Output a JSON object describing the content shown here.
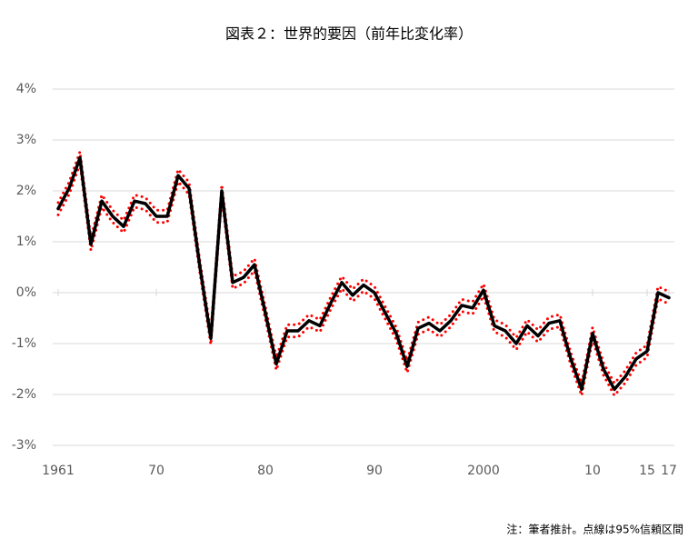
{
  "chart_data": {
    "type": "line",
    "title": "図表２：世界的要因（前年比変化率）",
    "note": "注：筆者推計。点線は95%信頼区間",
    "x": [
      1961,
      1962,
      1963,
      1964,
      1965,
      1966,
      1967,
      1968,
      1969,
      1970,
      1971,
      1972,
      1973,
      1974,
      1975,
      1976,
      1977,
      1978,
      1979,
      1980,
      1981,
      1982,
      1983,
      1984,
      1985,
      1986,
      1987,
      1988,
      1989,
      1990,
      1991,
      1992,
      1993,
      1994,
      1995,
      1996,
      1997,
      1998,
      1999,
      2000,
      2001,
      2002,
      2003,
      2004,
      2005,
      2006,
      2007,
      2008,
      2009,
      2010,
      2011,
      2012,
      2013,
      2014,
      2015,
      2016,
      2017
    ],
    "series": [
      {
        "color": "#ff0000",
        "style": "dotted",
        "values": [
          1.77,
          2.17,
          2.77,
          1.07,
          1.92,
          1.62,
          1.42,
          1.92,
          1.87,
          1.62,
          1.62,
          2.42,
          2.17,
          0.62,
          -0.78,
          2.12,
          0.32,
          0.42,
          0.67,
          -0.28,
          -1.28,
          -0.63,
          -0.63,
          -0.43,
          -0.53,
          -0.08,
          0.32,
          0.07,
          0.27,
          0.12,
          -0.28,
          -0.68,
          -1.33,
          -0.58,
          -0.48,
          -0.63,
          -0.43,
          -0.13,
          -0.18,
          0.17,
          -0.53,
          -0.63,
          -0.88,
          -0.53,
          -0.73,
          -0.48,
          -0.43,
          -1.18,
          -1.78,
          -0.68,
          -1.38,
          -1.78,
          -1.53,
          -1.18,
          -1.03,
          0.12,
          0.02
        ]
      },
      {
        "color": "#ff0000",
        "style": "dotted",
        "values": [
          1.53,
          1.93,
          2.53,
          0.83,
          1.68,
          1.38,
          1.18,
          1.68,
          1.63,
          1.38,
          1.38,
          2.18,
          1.93,
          0.38,
          -1.02,
          1.88,
          0.08,
          0.18,
          0.43,
          -0.52,
          -1.52,
          -0.87,
          -0.87,
          -0.67,
          -0.77,
          -0.32,
          0.08,
          -0.17,
          0.03,
          -0.12,
          -0.52,
          -0.92,
          -1.57,
          -0.82,
          -0.72,
          -0.87,
          -0.67,
          -0.37,
          -0.42,
          -0.07,
          -0.77,
          -0.87,
          -1.12,
          -0.77,
          -0.97,
          -0.72,
          -0.67,
          -1.42,
          -2.02,
          -0.92,
          -1.62,
          -2.02,
          -1.77,
          -1.42,
          -1.27,
          -0.12,
          -0.22
        ]
      },
      {
        "color": "#000000",
        "style": "solid",
        "values": [
          1.65,
          2.05,
          2.65,
          0.95,
          1.8,
          1.5,
          1.3,
          1.8,
          1.75,
          1.5,
          1.5,
          2.3,
          2.05,
          0.5,
          -0.9,
          2.0,
          0.2,
          0.3,
          0.55,
          -0.4,
          -1.4,
          -0.75,
          -0.75,
          -0.55,
          -0.65,
          -0.2,
          0.2,
          -0.05,
          0.15,
          0.0,
          -0.4,
          -0.8,
          -1.45,
          -0.7,
          -0.6,
          -0.75,
          -0.55,
          -0.25,
          -0.3,
          0.05,
          -0.65,
          -0.75,
          -1.0,
          -0.65,
          -0.85,
          -0.6,
          -0.55,
          -1.3,
          -1.9,
          -0.8,
          -1.5,
          -1.9,
          -1.65,
          -1.3,
          -1.15,
          0.0,
          -0.1
        ]
      }
    ],
    "xlim": [
      1961,
      2017
    ],
    "xticks": [
      1961,
      {
        "value": 1970,
        "label": "70"
      },
      {
        "value": 1980,
        "label": "80"
      },
      {
        "value": 1990,
        "label": "90"
      },
      2000,
      {
        "value": 2010,
        "label": "10"
      },
      {
        "value": 2015,
        "label": "15"
      },
      {
        "value": 2017,
        "label": "17"
      }
    ],
    "ylim": [
      -3,
      4
    ],
    "yticks": [
      {
        "value": -3,
        "label": "-3%"
      },
      {
        "value": -2,
        "label": "-2%"
      },
      {
        "value": -1,
        "label": "-1%"
      },
      {
        "value": 0,
        "label": "0%"
      },
      {
        "value": 1,
        "label": "1%"
      },
      {
        "value": 2,
        "label": "2%"
      },
      {
        "value": 3,
        "label": "3%"
      },
      {
        "value": 4,
        "label": "4%"
      }
    ],
    "grid": true
  }
}
